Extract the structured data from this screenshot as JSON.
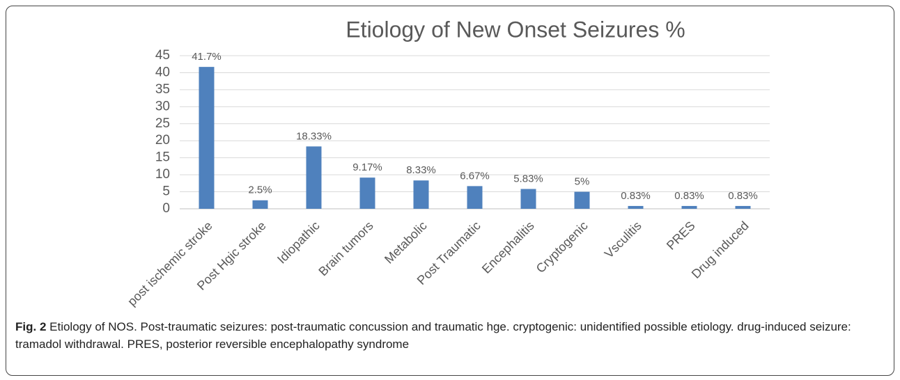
{
  "chart_data": {
    "type": "bar",
    "title": "Etiology of New Onset Seizures %",
    "categories": [
      "post ischemic stroke",
      "Post Hgic stroke",
      "Idiopathic",
      "Brain tumors",
      "Metabolic",
      "Post Traumatic",
      "Encephalitis",
      "Cryptogenic",
      "Vsculitis",
      "PRES",
      "Drug induced"
    ],
    "values": [
      41.7,
      2.5,
      18.33,
      9.17,
      8.33,
      6.67,
      5.83,
      5,
      0.83,
      0.83,
      0.83
    ],
    "value_labels": [
      "41.7%",
      "2.5%",
      "18.33%",
      "9.17%",
      "8.33%",
      "6.67%",
      "5.83%",
      "5%",
      "0.83%",
      "0.83%",
      "0.83%"
    ],
    "color": "#4f81bd",
    "ylim": [
      0,
      45
    ],
    "yticks": [
      0,
      5,
      10,
      15,
      20,
      25,
      30,
      35,
      40,
      45
    ],
    "grid": true
  },
  "caption": {
    "label": "Fig. 2",
    "text": "Etiology of NOS. Post-traumatic seizures: post-traumatic concussion and traumatic hge. cryptogenic: unidentified possible etiology. drug-induced seizure: tramadol withdrawal. PRES, posterior reversible encephalopathy syndrome"
  }
}
